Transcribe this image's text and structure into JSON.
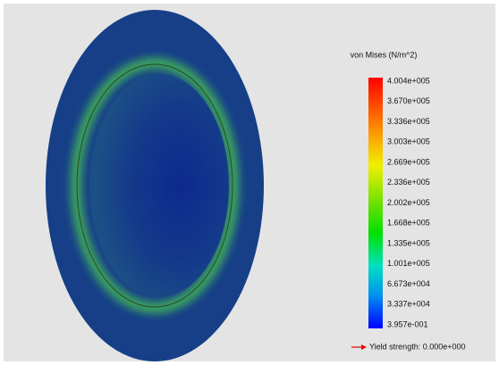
{
  "legend": {
    "title": "von Mises (N/m^2)",
    "labels": [
      "4.004e+005",
      "3.670e+005",
      "3.336e+005",
      "3.003e+005",
      "2.669e+005",
      "2.336e+005",
      "2.002e+005",
      "1.668e+005",
      "1.335e+005",
      "1.001e+005",
      "6.673e+004",
      "3.337e+004",
      "3.957e-001"
    ]
  },
  "yield_strength": "Yield strength: 0.000e+000"
}
